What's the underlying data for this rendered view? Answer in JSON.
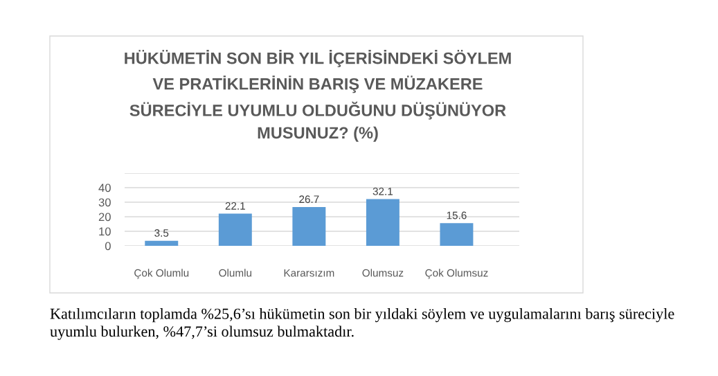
{
  "chart_data": {
    "type": "bar",
    "title": "HÜKÜMETİN SON BİR YIL İÇERİSİNDEKİ SÖYLEM\nVE PRATİKLERİNİN BARIŞ VE MÜZAKERE\nSÜRECİYLE UYUMLU OLDUĞUNU DÜŞÜNÜYOR\nMUSUNUZ? (%)",
    "categories": [
      "Çok Olumlu",
      "Olumlu",
      "Kararsızım",
      "Olumsuz",
      "Çok Olumsuz"
    ],
    "values": [
      3.5,
      22.1,
      26.7,
      32.1,
      15.6
    ],
    "color": "#5b9bd5",
    "ylim": [
      0,
      50
    ],
    "yticks": [
      0,
      10,
      20,
      30,
      40,
      {
        "value": 50,
        "label": null
      }
    ],
    "grid": "y",
    "data_labels": true,
    "annotations": [
      "Katılımcıların toplamda %25,6’sı hükümetin son bir yıldaki söylem ve uygulamalarını barış süreciyle uyumlu bulurken, %47,7’si olumsuz bulmaktadır."
    ]
  }
}
